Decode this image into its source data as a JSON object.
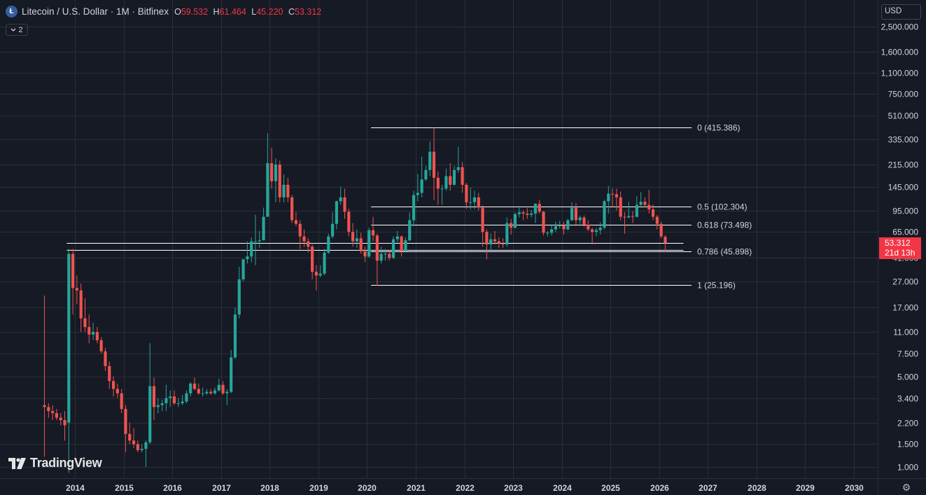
{
  "header": {
    "icon_letter": "Ł",
    "title": "Litecoin / U.S. Dollar · 1M · Bitfinex",
    "open_label": "O",
    "open": "59.532",
    "high_label": "H",
    "high": "61.464",
    "low_label": "L",
    "low": "45.220",
    "close_label": "C",
    "close": "53.312"
  },
  "indicator_toggle": {
    "icon": "chevron-down-icon",
    "count": "2"
  },
  "currency": "USD",
  "price_tag": {
    "price": "53.312",
    "countdown": "21d 13h"
  },
  "branding": {
    "logo": "TradingView"
  },
  "settings_icon": "gear-icon",
  "colors": {
    "background": "#161a25",
    "grid": "#2a2e39",
    "up": "#26a69a",
    "down": "#ef5350",
    "fib": "#ffffff"
  },
  "chart_data": {
    "type": "candlestick",
    "y_scale": "log",
    "ylim": [
      0.85,
      3000
    ],
    "xlim": [
      2013.0,
      2030.5
    ],
    "x_ticks": [
      "2014",
      "2015",
      "2016",
      "2017",
      "2018",
      "2019",
      "2020",
      "2021",
      "2022",
      "2023",
      "2024",
      "2025",
      "2026",
      "2027",
      "2028",
      "2029",
      "2030"
    ],
    "y_ticks": [
      "1.000",
      "1.500",
      "2.200",
      "3.400",
      "5.000",
      "7.500",
      "11.000",
      "17.000",
      "27.000",
      "41.000",
      "65.000",
      "95.000",
      "145.000",
      "215.000",
      "335.000",
      "510.000",
      "750.000",
      "1,100.000",
      "1,600.000",
      "2,500.000"
    ],
    "candles": [
      {
        "t": "2013-05",
        "o": 3.0,
        "h": 21,
        "l": 1.2,
        "c": 2.9
      },
      {
        "t": "2013-06",
        "o": 2.9,
        "h": 3.1,
        "l": 2.4,
        "c": 2.7
      },
      {
        "t": "2013-07",
        "o": 2.7,
        "h": 3.0,
        "l": 2.3,
        "c": 2.6
      },
      {
        "t": "2013-08",
        "o": 2.6,
        "h": 2.8,
        "l": 2.3,
        "c": 2.4
      },
      {
        "t": "2013-09",
        "o": 2.4,
        "h": 2.6,
        "l": 2.1,
        "c": 2.3
      },
      {
        "t": "2013-10",
        "o": 2.3,
        "h": 2.7,
        "l": 1.6,
        "c": 2.1
      },
      {
        "t": "2013-11",
        "o": 2.2,
        "h": 48,
        "l": 0.9,
        "c": 44
      },
      {
        "t": "2013-12",
        "o": 44,
        "h": 48,
        "l": 15,
        "c": 24
      },
      {
        "t": "2014-01",
        "o": 24,
        "h": 30,
        "l": 18,
        "c": 23
      },
      {
        "t": "2014-02",
        "o": 23,
        "h": 26,
        "l": 11,
        "c": 14
      },
      {
        "t": "2014-03",
        "o": 14,
        "h": 20,
        "l": 11,
        "c": 12
      },
      {
        "t": "2014-04",
        "o": 12,
        "h": 15,
        "l": 9,
        "c": 10.5
      },
      {
        "t": "2014-05",
        "o": 10.5,
        "h": 13,
        "l": 9.5,
        "c": 11
      },
      {
        "t": "2014-06",
        "o": 11,
        "h": 12,
        "l": 9,
        "c": 9.5
      },
      {
        "t": "2014-07",
        "o": 9.5,
        "h": 10,
        "l": 7.5,
        "c": 7.8
      },
      {
        "t": "2014-08",
        "o": 7.8,
        "h": 8.3,
        "l": 5.5,
        "c": 6.0
      },
      {
        "t": "2014-09",
        "o": 6.0,
        "h": 6.5,
        "l": 4.0,
        "c": 4.6
      },
      {
        "t": "2014-10",
        "o": 4.6,
        "h": 5.0,
        "l": 3.5,
        "c": 4.0
      },
      {
        "t": "2014-11",
        "o": 4.0,
        "h": 4.4,
        "l": 3.4,
        "c": 3.7
      },
      {
        "t": "2014-12",
        "o": 3.7,
        "h": 4.0,
        "l": 2.6,
        "c": 2.8
      },
      {
        "t": "2015-01",
        "o": 2.8,
        "h": 3.0,
        "l": 1.3,
        "c": 1.8
      },
      {
        "t": "2015-02",
        "o": 1.8,
        "h": 2.2,
        "l": 1.5,
        "c": 1.6
      },
      {
        "t": "2015-03",
        "o": 1.6,
        "h": 2.0,
        "l": 1.4,
        "c": 1.5
      },
      {
        "t": "2015-04",
        "o": 1.5,
        "h": 1.6,
        "l": 1.3,
        "c": 1.35
      },
      {
        "t": "2015-05",
        "o": 1.35,
        "h": 1.5,
        "l": 1.3,
        "c": 1.38
      },
      {
        "t": "2015-06",
        "o": 1.38,
        "h": 1.6,
        "l": 1.0,
        "c": 1.55
      },
      {
        "t": "2015-07",
        "o": 1.55,
        "h": 9.0,
        "l": 1.5,
        "c": 4.2
      },
      {
        "t": "2015-08",
        "o": 4.2,
        "h": 4.9,
        "l": 2.3,
        "c": 2.9
      },
      {
        "t": "2015-09",
        "o": 2.9,
        "h": 3.4,
        "l": 2.6,
        "c": 3.0
      },
      {
        "t": "2015-10",
        "o": 3.0,
        "h": 3.3,
        "l": 2.7,
        "c": 3.1
      },
      {
        "t": "2015-11",
        "o": 3.1,
        "h": 4.3,
        "l": 2.7,
        "c": 3.4
      },
      {
        "t": "2015-12",
        "o": 3.4,
        "h": 3.9,
        "l": 2.9,
        "c": 3.5
      },
      {
        "t": "2016-01",
        "o": 3.5,
        "h": 3.9,
        "l": 3.0,
        "c": 3.1
      },
      {
        "t": "2016-02",
        "o": 3.1,
        "h": 3.4,
        "l": 2.9,
        "c": 3.1
      },
      {
        "t": "2016-03",
        "o": 3.1,
        "h": 3.6,
        "l": 3.0,
        "c": 3.2
      },
      {
        "t": "2016-04",
        "o": 3.2,
        "h": 3.9,
        "l": 3.1,
        "c": 3.7
      },
      {
        "t": "2016-05",
        "o": 3.7,
        "h": 4.5,
        "l": 3.5,
        "c": 4.4
      },
      {
        "t": "2016-06",
        "o": 4.4,
        "h": 4.9,
        "l": 3.9,
        "c": 4.0
      },
      {
        "t": "2016-07",
        "o": 4.0,
        "h": 4.4,
        "l": 3.6,
        "c": 3.7
      },
      {
        "t": "2016-08",
        "o": 3.7,
        "h": 4.1,
        "l": 3.5,
        "c": 3.7
      },
      {
        "t": "2016-09",
        "o": 3.7,
        "h": 4.0,
        "l": 3.6,
        "c": 3.8
      },
      {
        "t": "2016-10",
        "o": 3.8,
        "h": 4.0,
        "l": 3.6,
        "c": 3.7
      },
      {
        "t": "2016-11",
        "o": 3.7,
        "h": 4.1,
        "l": 3.6,
        "c": 3.9
      },
      {
        "t": "2016-12",
        "o": 3.9,
        "h": 4.8,
        "l": 3.8,
        "c": 4.3
      },
      {
        "t": "2017-01",
        "o": 4.3,
        "h": 4.6,
        "l": 3.6,
        "c": 3.7
      },
      {
        "t": "2017-02",
        "o": 3.7,
        "h": 4.0,
        "l": 3.0,
        "c": 3.8
      },
      {
        "t": "2017-03",
        "o": 3.8,
        "h": 8.0,
        "l": 3.7,
        "c": 7.0
      },
      {
        "t": "2017-04",
        "o": 7.0,
        "h": 17,
        "l": 6.8,
        "c": 15
      },
      {
        "t": "2017-05",
        "o": 15,
        "h": 35,
        "l": 14,
        "c": 28
      },
      {
        "t": "2017-06",
        "o": 28,
        "h": 40,
        "l": 27,
        "c": 40
      },
      {
        "t": "2017-07",
        "o": 40,
        "h": 55,
        "l": 37,
        "c": 42
      },
      {
        "t": "2017-08",
        "o": 42,
        "h": 59,
        "l": 38,
        "c": 55
      },
      {
        "t": "2017-09",
        "o": 55,
        "h": 88,
        "l": 36,
        "c": 55
      },
      {
        "t": "2017-10",
        "o": 55,
        "h": 66,
        "l": 49,
        "c": 56
      },
      {
        "t": "2017-11",
        "o": 56,
        "h": 100,
        "l": 56,
        "c": 85
      },
      {
        "t": "2017-12",
        "o": 85,
        "h": 375,
        "l": 85,
        "c": 220
      },
      {
        "t": "2018-01",
        "o": 220,
        "h": 290,
        "l": 140,
        "c": 160
      },
      {
        "t": "2018-02",
        "o": 160,
        "h": 240,
        "l": 110,
        "c": 215
      },
      {
        "t": "2018-03",
        "o": 215,
        "h": 230,
        "l": 110,
        "c": 120
      },
      {
        "t": "2018-04",
        "o": 120,
        "h": 180,
        "l": 110,
        "c": 150
      },
      {
        "t": "2018-05",
        "o": 150,
        "h": 170,
        "l": 110,
        "c": 120
      },
      {
        "t": "2018-06",
        "o": 120,
        "h": 125,
        "l": 76,
        "c": 80
      },
      {
        "t": "2018-07",
        "o": 80,
        "h": 93,
        "l": 72,
        "c": 75
      },
      {
        "t": "2018-08",
        "o": 75,
        "h": 80,
        "l": 48,
        "c": 60
      },
      {
        "t": "2018-09",
        "o": 60,
        "h": 68,
        "l": 50,
        "c": 55
      },
      {
        "t": "2018-10",
        "o": 55,
        "h": 58,
        "l": 45,
        "c": 50
      },
      {
        "t": "2018-11",
        "o": 50,
        "h": 52,
        "l": 28,
        "c": 32
      },
      {
        "t": "2018-12",
        "o": 32,
        "h": 36,
        "l": 23,
        "c": 30
      },
      {
        "t": "2019-01",
        "o": 30,
        "h": 36,
        "l": 29,
        "c": 31
      },
      {
        "t": "2019-02",
        "o": 31,
        "h": 48,
        "l": 30,
        "c": 45
      },
      {
        "t": "2019-03",
        "o": 45,
        "h": 63,
        "l": 44,
        "c": 60
      },
      {
        "t": "2019-04",
        "o": 60,
        "h": 92,
        "l": 58,
        "c": 75
      },
      {
        "t": "2019-05",
        "o": 75,
        "h": 113,
        "l": 68,
        "c": 112
      },
      {
        "t": "2019-06",
        "o": 112,
        "h": 145,
        "l": 105,
        "c": 120
      },
      {
        "t": "2019-07",
        "o": 120,
        "h": 140,
        "l": 82,
        "c": 93
      },
      {
        "t": "2019-08",
        "o": 93,
        "h": 98,
        "l": 60,
        "c": 65
      },
      {
        "t": "2019-09",
        "o": 65,
        "h": 76,
        "l": 50,
        "c": 55
      },
      {
        "t": "2019-10",
        "o": 55,
        "h": 68,
        "l": 49,
        "c": 58
      },
      {
        "t": "2019-11",
        "o": 58,
        "h": 64,
        "l": 44,
        "c": 46
      },
      {
        "t": "2019-12",
        "o": 46,
        "h": 50,
        "l": 38,
        "c": 42
      },
      {
        "t": "2020-01",
        "o": 42,
        "h": 70,
        "l": 41,
        "c": 67
      },
      {
        "t": "2020-02",
        "o": 67,
        "h": 85,
        "l": 55,
        "c": 61
      },
      {
        "t": "2020-03",
        "o": 61,
        "h": 63,
        "l": 25,
        "c": 39
      },
      {
        "t": "2020-04",
        "o": 39,
        "h": 50,
        "l": 37,
        "c": 44
      },
      {
        "t": "2020-05",
        "o": 44,
        "h": 48,
        "l": 39,
        "c": 44
      },
      {
        "t": "2020-06",
        "o": 44,
        "h": 47,
        "l": 39,
        "c": 41
      },
      {
        "t": "2020-07",
        "o": 41,
        "h": 60,
        "l": 40,
        "c": 57
      },
      {
        "t": "2020-08",
        "o": 57,
        "h": 66,
        "l": 54,
        "c": 60
      },
      {
        "t": "2020-09",
        "o": 60,
        "h": 61,
        "l": 42,
        "c": 46
      },
      {
        "t": "2020-10",
        "o": 46,
        "h": 59,
        "l": 45,
        "c": 56
      },
      {
        "t": "2020-11",
        "o": 56,
        "h": 92,
        "l": 55,
        "c": 80
      },
      {
        "t": "2020-12",
        "o": 80,
        "h": 135,
        "l": 72,
        "c": 125
      },
      {
        "t": "2021-01",
        "o": 125,
        "h": 182,
        "l": 112,
        "c": 130
      },
      {
        "t": "2021-02",
        "o": 130,
        "h": 247,
        "l": 120,
        "c": 165
      },
      {
        "t": "2021-03",
        "o": 165,
        "h": 210,
        "l": 160,
        "c": 195
      },
      {
        "t": "2021-04",
        "o": 195,
        "h": 325,
        "l": 175,
        "c": 270
      },
      {
        "t": "2021-05",
        "o": 270,
        "h": 413,
        "l": 115,
        "c": 170
      },
      {
        "t": "2021-06",
        "o": 170,
        "h": 190,
        "l": 105,
        "c": 140
      },
      {
        "t": "2021-07",
        "o": 140,
        "h": 150,
        "l": 105,
        "c": 140
      },
      {
        "t": "2021-08",
        "o": 140,
        "h": 200,
        "l": 135,
        "c": 175
      },
      {
        "t": "2021-09",
        "o": 175,
        "h": 220,
        "l": 135,
        "c": 150
      },
      {
        "t": "2021-10",
        "o": 150,
        "h": 210,
        "l": 148,
        "c": 195
      },
      {
        "t": "2021-11",
        "o": 195,
        "h": 295,
        "l": 185,
        "c": 205
      },
      {
        "t": "2021-12",
        "o": 205,
        "h": 225,
        "l": 130,
        "c": 150
      },
      {
        "t": "2022-01",
        "o": 150,
        "h": 155,
        "l": 98,
        "c": 110
      },
      {
        "t": "2022-02",
        "o": 110,
        "h": 143,
        "l": 97,
        "c": 110
      },
      {
        "t": "2022-03",
        "o": 110,
        "h": 135,
        "l": 98,
        "c": 120
      },
      {
        "t": "2022-04",
        "o": 120,
        "h": 130,
        "l": 95,
        "c": 100
      },
      {
        "t": "2022-05",
        "o": 100,
        "h": 104,
        "l": 50,
        "c": 65
      },
      {
        "t": "2022-06",
        "o": 65,
        "h": 68,
        "l": 40,
        "c": 52
      },
      {
        "t": "2022-07",
        "o": 52,
        "h": 63,
        "l": 47,
        "c": 57
      },
      {
        "t": "2022-08",
        "o": 57,
        "h": 66,
        "l": 52,
        "c": 55
      },
      {
        "t": "2022-09",
        "o": 55,
        "h": 59,
        "l": 49,
        "c": 53
      },
      {
        "t": "2022-10",
        "o": 53,
        "h": 58,
        "l": 49,
        "c": 52
      },
      {
        "t": "2022-11",
        "o": 52,
        "h": 84,
        "l": 50,
        "c": 76
      },
      {
        "t": "2022-12",
        "o": 76,
        "h": 82,
        "l": 62,
        "c": 70
      },
      {
        "t": "2023-01",
        "o": 70,
        "h": 92,
        "l": 69,
        "c": 89
      },
      {
        "t": "2023-02",
        "o": 89,
        "h": 103,
        "l": 84,
        "c": 92
      },
      {
        "t": "2023-03",
        "o": 92,
        "h": 95,
        "l": 80,
        "c": 90
      },
      {
        "t": "2023-04",
        "o": 90,
        "h": 99,
        "l": 82,
        "c": 88
      },
      {
        "t": "2023-05",
        "o": 88,
        "h": 96,
        "l": 84,
        "c": 90
      },
      {
        "t": "2023-06",
        "o": 90,
        "h": 108,
        "l": 76,
        "c": 107
      },
      {
        "t": "2023-07",
        "o": 107,
        "h": 115,
        "l": 90,
        "c": 93
      },
      {
        "t": "2023-08",
        "o": 93,
        "h": 94,
        "l": 61,
        "c": 64
      },
      {
        "t": "2023-09",
        "o": 64,
        "h": 66,
        "l": 60,
        "c": 64
      },
      {
        "t": "2023-10",
        "o": 64,
        "h": 73,
        "l": 61,
        "c": 68
      },
      {
        "t": "2023-11",
        "o": 68,
        "h": 78,
        "l": 65,
        "c": 72
      },
      {
        "t": "2023-12",
        "o": 72,
        "h": 79,
        "l": 69,
        "c": 73
      },
      {
        "t": "2024-01",
        "o": 73,
        "h": 78,
        "l": 62,
        "c": 68
      },
      {
        "t": "2024-02",
        "o": 68,
        "h": 82,
        "l": 67,
        "c": 80
      },
      {
        "t": "2024-03",
        "o": 80,
        "h": 110,
        "l": 79,
        "c": 100
      },
      {
        "t": "2024-04",
        "o": 100,
        "h": 108,
        "l": 74,
        "c": 80
      },
      {
        "t": "2024-05",
        "o": 80,
        "h": 87,
        "l": 75,
        "c": 84
      },
      {
        "t": "2024-06",
        "o": 84,
        "h": 87,
        "l": 71,
        "c": 74
      },
      {
        "t": "2024-07",
        "o": 74,
        "h": 80,
        "l": 66,
        "c": 68
      },
      {
        "t": "2024-08",
        "o": 68,
        "h": 70,
        "l": 52,
        "c": 65
      },
      {
        "t": "2024-09",
        "o": 65,
        "h": 70,
        "l": 60,
        "c": 67
      },
      {
        "t": "2024-10",
        "o": 67,
        "h": 77,
        "l": 62,
        "c": 70
      },
      {
        "t": "2024-11",
        "o": 70,
        "h": 115,
        "l": 68,
        "c": 112
      },
      {
        "t": "2024-12",
        "o": 112,
        "h": 147,
        "l": 90,
        "c": 128
      },
      {
        "t": "2025-01",
        "o": 128,
        "h": 141,
        "l": 100,
        "c": 127
      },
      {
        "t": "2025-02",
        "o": 127,
        "h": 140,
        "l": 95,
        "c": 120
      },
      {
        "t": "2025-03",
        "o": 120,
        "h": 133,
        "l": 80,
        "c": 85
      },
      {
        "t": "2025-04",
        "o": 85,
        "h": 92,
        "l": 63,
        "c": 84
      },
      {
        "t": "2025-05",
        "o": 84,
        "h": 111,
        "l": 83,
        "c": 86
      },
      {
        "t": "2025-06",
        "o": 86,
        "h": 94,
        "l": 76,
        "c": 85
      },
      {
        "t": "2025-07",
        "o": 85,
        "h": 123,
        "l": 84,
        "c": 105
      },
      {
        "t": "2025-08",
        "o": 105,
        "h": 132,
        "l": 103,
        "c": 111
      },
      {
        "t": "2025-09",
        "o": 111,
        "h": 120,
        "l": 100,
        "c": 105
      },
      {
        "t": "2025-10",
        "o": 105,
        "h": 137,
        "l": 90,
        "c": 97
      },
      {
        "t": "2025-11",
        "o": 97,
        "h": 106,
        "l": 80,
        "c": 85
      },
      {
        "t": "2025-12",
        "o": 85,
        "h": 88,
        "l": 68,
        "c": 75
      },
      {
        "t": "2026-01",
        "o": 75,
        "h": 78,
        "l": 58,
        "c": 60
      },
      {
        "t": "2026-02",
        "o": 59.532,
        "h": 61.464,
        "l": 45.22,
        "c": 53.312
      }
    ],
    "fib_retracement": {
      "start": "2020-02",
      "end": "2025-12",
      "levels": [
        {
          "label": "0 (415.386)",
          "value": 415.386,
          "start": "2020-02",
          "end": "2026-09"
        },
        {
          "label": "0.5 (102.304)",
          "value": 102.304,
          "start": "2020-02",
          "end": "2026-09"
        },
        {
          "label": "0.618 (73.498)",
          "value": 73.498,
          "start": "2020-02",
          "end": "2026-09"
        },
        {
          "label": "0.786 (45.898)",
          "value": 45.898,
          "start": "2020-02",
          "end": "2026-09"
        },
        {
          "label": "1 (25.196)",
          "value": 25.196,
          "start": "2020-02",
          "end": "2026-09"
        }
      ]
    },
    "horizontal_lines": [
      {
        "value": 53.5,
        "start": "2013-11",
        "end": "2026-07"
      },
      {
        "value": 47.3,
        "start": "2013-11",
        "end": "2026-07"
      }
    ]
  }
}
